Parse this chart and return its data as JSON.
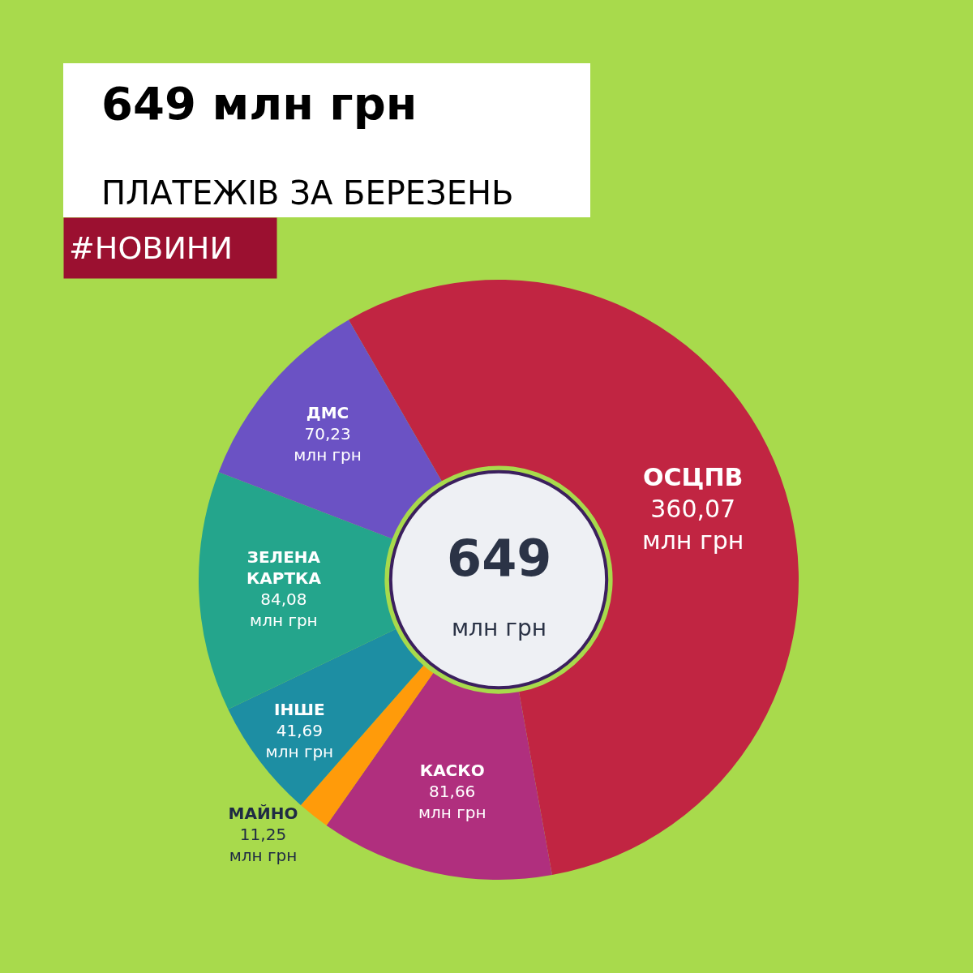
{
  "chart_data": {
    "type": "donut",
    "title": "649 млн грн",
    "subtitle": "ПЛАТЕЖІВ ЗА БЕРЕЗЕНЬ",
    "annotations": [
      "#НОВИНИ",
      "649",
      "млн грн"
    ],
    "categories": [
      "ОСЦПВ",
      "КАСКО",
      "МАЙНО",
      "ІНШЕ",
      "ЗЕЛЕНА КАРТКА",
      "ДМС"
    ],
    "values": [
      360.07,
      81.66,
      11.25,
      41.69,
      84.08,
      70.23
    ],
    "colors": [
      "#c12542",
      "#b02f7e",
      "#ff9b0a",
      "#1d8ea3",
      "#24a58c",
      "#6b52c4"
    ],
    "value_labels": [
      "360,07\nмлн грн",
      "81,66\nмлн грн",
      "11,25\nмлн грн",
      "41,69\nмлн грн",
      "84,08\nмлн грн",
      "70,23\nмлн грн"
    ]
  }
}
